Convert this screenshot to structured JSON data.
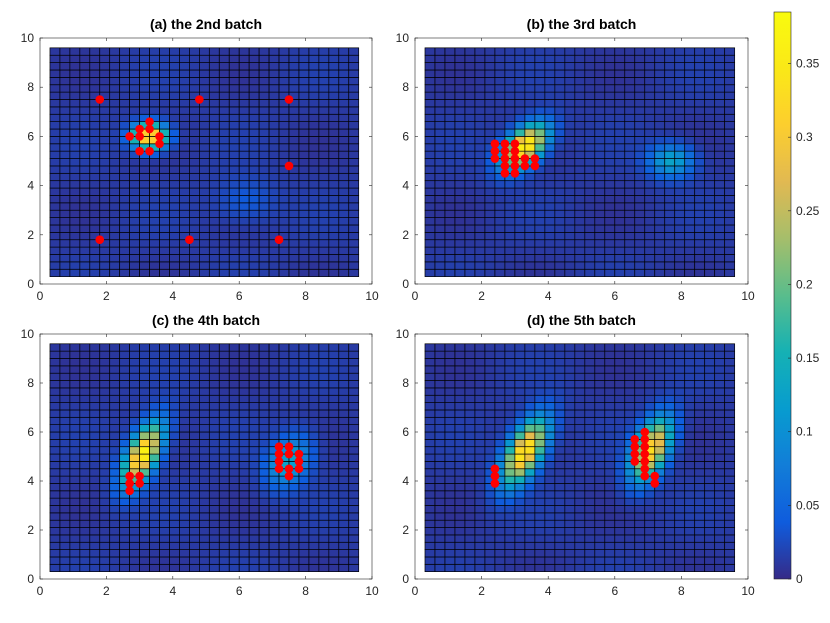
{
  "chart_data": [
    {
      "type": "heatmap",
      "title": "(a) the 2nd batch",
      "xlim": [
        0,
        10
      ],
      "ylim": [
        0,
        10
      ],
      "x_ticks": [
        "0",
        "2",
        "4",
        "6",
        "8",
        "10"
      ],
      "y_ticks": [
        "0",
        "2",
        "4",
        "6",
        "8",
        "10"
      ],
      "grid_extent": {
        "x": [
          0.3,
          9.6
        ],
        "y": [
          0.3,
          9.6
        ]
      },
      "grid_cells": [
        31,
        31
      ],
      "peaks": [
        {
          "x": 3.3,
          "y": 6.0,
          "amp": 0.36,
          "sx": 0.35,
          "sy": 0.35
        },
        {
          "x": 6.2,
          "y": 3.4,
          "amp": 0.03,
          "sx": 0.6,
          "sy": 0.6
        }
      ],
      "points": [
        [
          1.8,
          7.5
        ],
        [
          4.8,
          7.5
        ],
        [
          7.5,
          7.5
        ],
        [
          3.3,
          6.6
        ],
        [
          3.0,
          6.3
        ],
        [
          3.3,
          6.3
        ],
        [
          2.7,
          6.0
        ],
        [
          3.0,
          6.0
        ],
        [
          3.6,
          6.0
        ],
        [
          3.6,
          5.7
        ],
        [
          3.0,
          5.4
        ],
        [
          3.3,
          5.4
        ],
        [
          7.5,
          4.8
        ],
        [
          1.8,
          1.8
        ],
        [
          4.5,
          1.8
        ],
        [
          7.2,
          1.8
        ]
      ]
    },
    {
      "type": "heatmap",
      "title": "(b) the 3rd batch",
      "xlim": [
        0,
        10
      ],
      "ylim": [
        0,
        10
      ],
      "x_ticks": [
        "0",
        "2",
        "4",
        "6",
        "8",
        "10"
      ],
      "y_ticks": [
        "0",
        "2",
        "4",
        "6",
        "8",
        "10"
      ],
      "grid_extent": {
        "x": [
          0.3,
          9.6
        ],
        "y": [
          0.3,
          9.6
        ]
      },
      "grid_cells": [
        31,
        31
      ],
      "peaks": [
        {
          "x": 3.3,
          "y": 5.6,
          "amp": 0.37,
          "sx": 0.45,
          "sy": 0.6,
          "rho": 0.5
        },
        {
          "x": 7.7,
          "y": 5.0,
          "amp": 0.12,
          "sx": 0.45,
          "sy": 0.45
        }
      ],
      "points": [
        [
          2.4,
          5.7
        ],
        [
          2.7,
          5.7
        ],
        [
          3.0,
          5.7
        ],
        [
          2.4,
          5.4
        ],
        [
          2.7,
          5.4
        ],
        [
          3.0,
          5.4
        ],
        [
          2.4,
          5.1
        ],
        [
          2.7,
          5.1
        ],
        [
          3.0,
          5.1
        ],
        [
          3.3,
          5.1
        ],
        [
          3.6,
          5.1
        ],
        [
          2.7,
          4.8
        ],
        [
          3.0,
          4.8
        ],
        [
          3.3,
          4.8
        ],
        [
          3.6,
          4.8
        ],
        [
          2.7,
          4.5
        ],
        [
          3.0,
          4.5
        ]
      ]
    },
    {
      "type": "heatmap",
      "title": "(c) the 4th batch",
      "xlim": [
        0,
        10
      ],
      "ylim": [
        0,
        10
      ],
      "x_ticks": [
        "0",
        "2",
        "4",
        "6",
        "8",
        "10"
      ],
      "y_ticks": [
        "0",
        "2",
        "4",
        "6",
        "8",
        "10"
      ],
      "grid_extent": {
        "x": [
          0.3,
          9.6
        ],
        "y": [
          0.3,
          9.6
        ]
      },
      "grid_cells": [
        31,
        31
      ],
      "peaks": [
        {
          "x": 3.1,
          "y": 5.1,
          "amp": 0.36,
          "sx": 0.4,
          "sy": 0.85,
          "rho": 0.6
        },
        {
          "x": 7.5,
          "y": 4.8,
          "amp": 0.12,
          "sx": 0.45,
          "sy": 0.7,
          "rho": 0.3
        }
      ],
      "points": [
        [
          7.2,
          5.4
        ],
        [
          7.5,
          5.4
        ],
        [
          7.2,
          5.1
        ],
        [
          7.5,
          5.1
        ],
        [
          7.8,
          5.1
        ],
        [
          7.2,
          4.8
        ],
        [
          7.8,
          4.8
        ],
        [
          7.2,
          4.5
        ],
        [
          7.5,
          4.5
        ],
        [
          7.8,
          4.5
        ],
        [
          7.5,
          4.2
        ],
        [
          2.7,
          4.2
        ],
        [
          3.0,
          4.2
        ],
        [
          2.7,
          3.9
        ],
        [
          3.0,
          3.9
        ],
        [
          2.7,
          3.6
        ]
      ]
    },
    {
      "type": "heatmap",
      "title": "(d) the 5th batch",
      "xlim": [
        0,
        10
      ],
      "ylim": [
        0,
        10
      ],
      "x_ticks": [
        "0",
        "2",
        "4",
        "6",
        "8",
        "10"
      ],
      "y_ticks": [
        "0",
        "2",
        "4",
        "6",
        "8",
        "10"
      ],
      "grid_extent": {
        "x": [
          0.3,
          9.6
        ],
        "y": [
          0.3,
          9.6
        ]
      },
      "grid_cells": [
        31,
        31
      ],
      "peaks": [
        {
          "x": 3.3,
          "y": 5.2,
          "amp": 0.35,
          "sx": 0.45,
          "sy": 0.9,
          "rho": 0.6
        },
        {
          "x": 7.1,
          "y": 5.3,
          "amp": 0.32,
          "sx": 0.4,
          "sy": 0.85,
          "rho": 0.5
        }
      ],
      "points": [
        [
          6.9,
          6.0
        ],
        [
          6.6,
          5.7
        ],
        [
          6.9,
          5.7
        ],
        [
          6.6,
          5.4
        ],
        [
          6.9,
          5.4
        ],
        [
          6.6,
          5.1
        ],
        [
          6.9,
          5.1
        ],
        [
          6.6,
          4.8
        ],
        [
          6.9,
          4.8
        ],
        [
          2.4,
          4.5
        ],
        [
          6.9,
          4.5
        ],
        [
          2.4,
          4.2
        ],
        [
          6.9,
          4.2
        ],
        [
          7.2,
          4.2
        ],
        [
          2.4,
          3.9
        ],
        [
          7.2,
          3.9
        ]
      ]
    }
  ],
  "colorbar": {
    "min": 0,
    "max": 0.385,
    "ticks": [
      0,
      0.05,
      0.1,
      0.15,
      0.2,
      0.25,
      0.3,
      0.35
    ],
    "tick_labels": [
      "0",
      "0.05",
      "0.1",
      "0.15",
      "0.2",
      "0.25",
      "0.3",
      "0.35"
    ],
    "colormap": "parula"
  },
  "colors": {
    "marker": "#ff0000",
    "grid_line": "#000000",
    "axis": "#262626"
  }
}
